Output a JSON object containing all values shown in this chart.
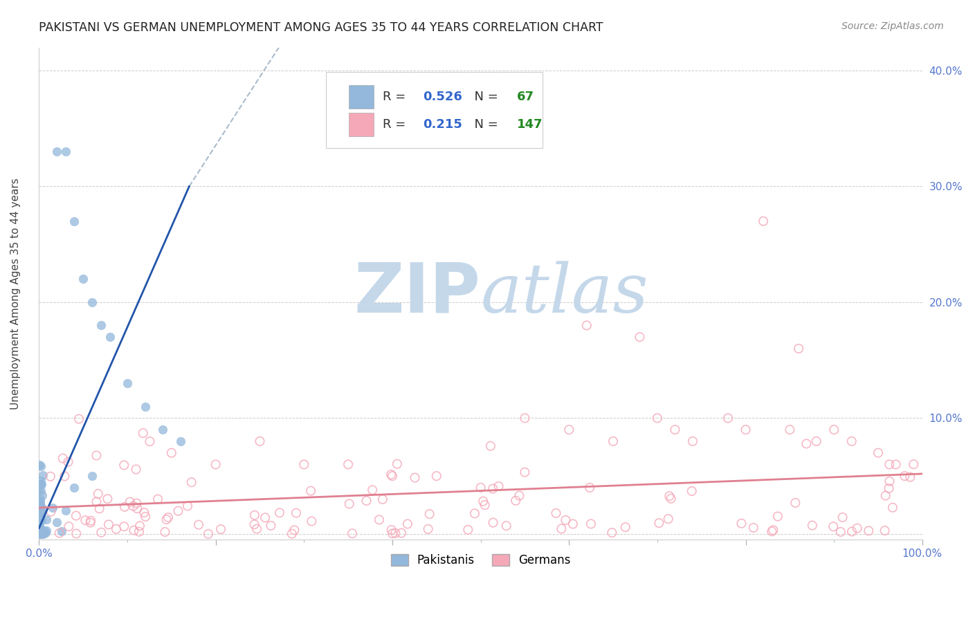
{
  "title": "PAKISTANI VS GERMAN UNEMPLOYMENT AMONG AGES 35 TO 44 YEARS CORRELATION CHART",
  "source": "Source: ZipAtlas.com",
  "ylabel": "Unemployment Among Ages 35 to 44 years",
  "xlim": [
    0.0,
    1.0
  ],
  "ylim": [
    -0.005,
    0.42
  ],
  "x_ticks": [
    0.0,
    0.2,
    0.4,
    0.6,
    0.8,
    1.0
  ],
  "x_tick_labels": [
    "0.0%",
    "",
    "",
    "",
    "",
    "100.0%"
  ],
  "y_ticks": [
    0.0,
    0.1,
    0.2,
    0.3,
    0.4
  ],
  "y_tick_labels": [
    "",
    "10.0%",
    "20.0%",
    "30.0%",
    "40.0%"
  ],
  "pakistani_color": "#93b8db",
  "pakistani_edge": "#93b8db",
  "german_color": "#f4a8b8",
  "pakistani_R": 0.526,
  "pakistani_N": 67,
  "german_R": 0.215,
  "german_N": 147,
  "tick_color": "#5577cc",
  "legend_R_color": "#3366cc",
  "legend_N_color": "#228822",
  "watermark_ZIP": "#c5d8ea",
  "watermark_atlas": "#c5d8ea",
  "grid_color": "#cccccc",
  "title_fontsize": 12.5,
  "axis_label_fontsize": 11,
  "tick_fontsize": 11,
  "source_fontsize": 10
}
